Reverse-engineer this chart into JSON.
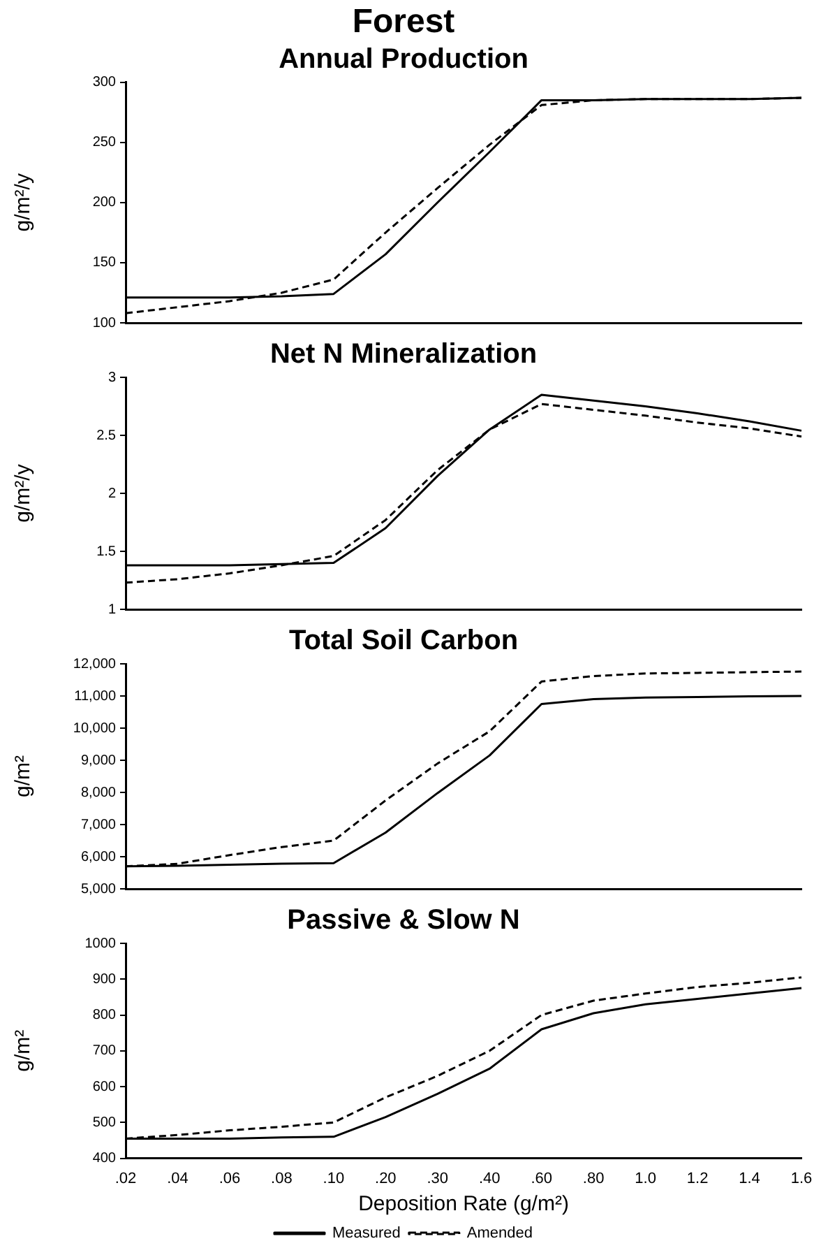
{
  "chart_data": [
    {
      "type": "line",
      "title": "Forest",
      "subtitle": "Annual Production",
      "ylabel": "g/m²/y",
      "categories": [
        ".02",
        ".04",
        ".06",
        ".08",
        ".10",
        ".20",
        ".30",
        ".40",
        ".60",
        ".80",
        "1.0",
        "1.2",
        "1.4",
        "1.6"
      ],
      "series": [
        {
          "color": "#000000",
          "line_style": "solid",
          "values": [
            121,
            121,
            121,
            122,
            124,
            157,
            200,
            242,
            285,
            285,
            286,
            286,
            286,
            287
          ]
        },
        {
          "color": "#000000",
          "line_style": "dashed",
          "values": [
            108,
            113,
            118,
            125,
            136,
            175,
            212,
            248,
            281,
            285,
            286,
            286,
            286,
            287
          ]
        }
      ],
      "ylim": [
        100,
        300
      ],
      "yticks": [
        100,
        150,
        200,
        250,
        300
      ],
      "grid": false,
      "legend": false,
      "marker": "none",
      "tick_labels": "y"
    },
    {
      "type": "line",
      "title": "Net N Mineralization",
      "ylabel": "g/m²/y",
      "categories": [
        ".02",
        ".04",
        ".06",
        ".08",
        ".10",
        ".20",
        ".30",
        ".40",
        ".60",
        ".80",
        "1.0",
        "1.2",
        "1.4",
        "1.6"
      ],
      "series": [
        {
          "color": "#000000",
          "line_style": "solid",
          "values": [
            1.38,
            1.38,
            1.38,
            1.39,
            1.4,
            1.7,
            2.15,
            2.55,
            2.85,
            2.8,
            2.75,
            2.69,
            2.62,
            2.54
          ]
        },
        {
          "color": "#000000",
          "line_style": "dashed",
          "values": [
            1.23,
            1.26,
            1.31,
            1.38,
            1.46,
            1.77,
            2.2,
            2.55,
            2.77,
            2.72,
            2.67,
            2.61,
            2.56,
            2.49
          ]
        }
      ],
      "ylim": [
        1,
        3
      ],
      "yticks": [
        1,
        1.5,
        2,
        2.5,
        3
      ],
      "grid": false,
      "legend": false,
      "marker": "none",
      "tick_labels": "y"
    },
    {
      "type": "line",
      "title": "Total Soil Carbon",
      "ylabel": "g/m²",
      "categories": [
        ".02",
        ".04",
        ".06",
        ".08",
        ".10",
        ".20",
        ".30",
        ".40",
        ".60",
        ".80",
        "1.0",
        "1.2",
        "1.4",
        "1.6"
      ],
      "series": [
        {
          "color": "#000000",
          "line_style": "solid",
          "values": [
            5700,
            5720,
            5750,
            5780,
            5800,
            6750,
            7980,
            9150,
            10750,
            10900,
            10950,
            10970,
            10990,
            11000
          ]
        },
        {
          "color": "#000000",
          "line_style": "dashed",
          "values": [
            5700,
            5780,
            6050,
            6300,
            6500,
            7750,
            8900,
            9900,
            11450,
            11620,
            11700,
            11720,
            11740,
            11760
          ]
        }
      ],
      "ylim": [
        5000,
        12000
      ],
      "yticks": [
        {
          "value": 5000,
          "label": "5,000"
        },
        {
          "value": 6000,
          "label": "6,000"
        },
        {
          "value": 7000,
          "label": "7,000"
        },
        {
          "value": 8000,
          "label": "8,000"
        },
        {
          "value": 9000,
          "label": "9,000"
        },
        {
          "value": 10000,
          "label": "10,000"
        },
        {
          "value": 11000,
          "label": "11,000"
        },
        {
          "value": 12000,
          "label": "12,000"
        }
      ],
      "grid": false,
      "legend": false,
      "marker": "none",
      "tick_labels": "y"
    },
    {
      "type": "line",
      "title": "Passive & Slow N",
      "xlabel": "Deposition Rate (g/m²)",
      "ylabel": "g/m²",
      "categories": [
        ".02",
        ".04",
        ".06",
        ".08",
        ".10",
        ".20",
        ".30",
        ".40",
        ".60",
        ".80",
        "1.0",
        "1.2",
        "1.4",
        "1.6"
      ],
      "series": [
        {
          "name": "Measured",
          "color": "#000000",
          "line_style": "solid",
          "values": [
            455,
            455,
            455,
            458,
            460,
            515,
            580,
            650,
            760,
            805,
            830,
            845,
            860,
            875
          ]
        },
        {
          "name": "Amended",
          "color": "#000000",
          "line_style": "dashed",
          "values": [
            455,
            465,
            478,
            488,
            500,
            570,
            630,
            700,
            800,
            840,
            860,
            878,
            890,
            905
          ]
        }
      ],
      "ylim": [
        400,
        1000
      ],
      "yticks": [
        400,
        500,
        600,
        700,
        800,
        900,
        1000
      ],
      "grid": false,
      "legend": "bottom",
      "marker": "none"
    }
  ]
}
